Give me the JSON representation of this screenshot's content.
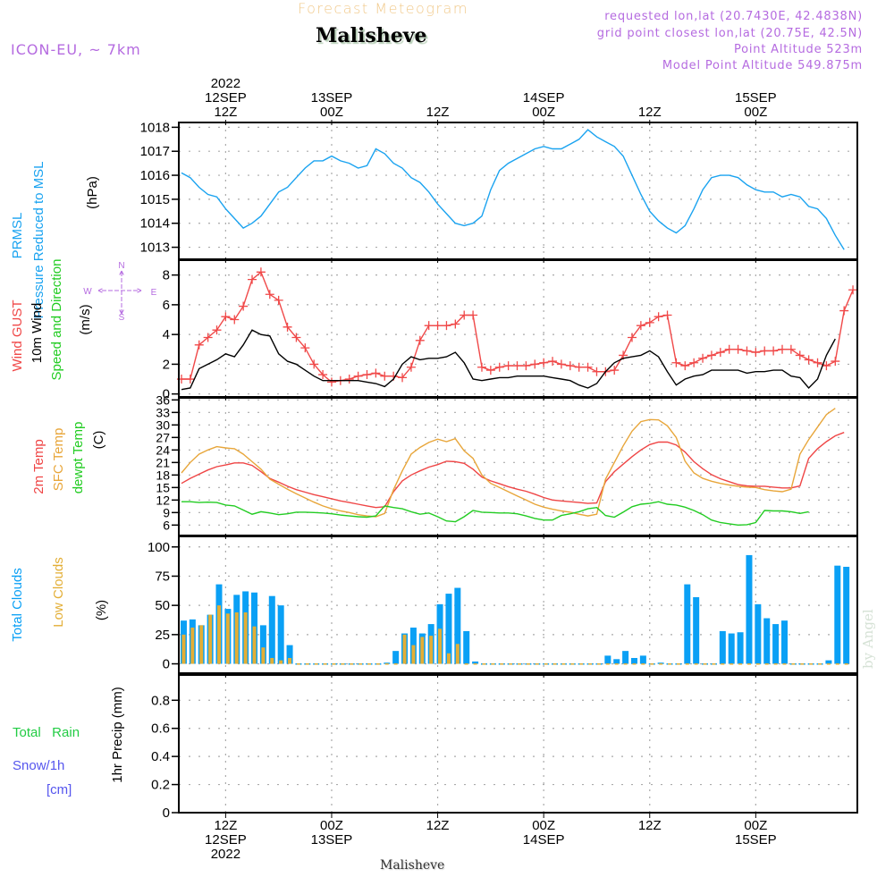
{
  "header": {
    "title": "Forecast Meteogram",
    "station": "Malisheve",
    "model": "ICON-EU, ~ 7km",
    "meta": [
      "requested lon,lat (20.7430E, 42.4838N)",
      "grid point closest lon,lat (20.75E, 42.5N)",
      "Point Altitude 523m",
      "Model Point Altitude 549.875m"
    ]
  },
  "footer": {
    "station": "Malisheve",
    "watermark": "by Angel"
  },
  "colors": {
    "pressure": "#1aa3f0",
    "gust": "#f04848",
    "wind": "#000000",
    "t2m": "#ef4545",
    "sfc": "#e8a63a",
    "dewpt": "#22cc22",
    "total_clouds": "#0aa0f5",
    "low_clouds": "#e3ae35",
    "rain": "#22cc44",
    "snow": "#5555ee",
    "compass": "#b56be0"
  },
  "chart_data": {
    "type": "line",
    "title": "Forecast Meteogram",
    "time_axis": {
      "unit": "hours since 12SEP 2022 07Z",
      "top_ticks": [
        {
          "hour": 5,
          "lines": [
            "2022",
            "12SEP",
            "12Z"
          ]
        },
        {
          "hour": 17,
          "lines": [
            "13SEP",
            "00Z"
          ]
        },
        {
          "hour": 29,
          "lines": [
            "12Z"
          ]
        },
        {
          "hour": 41,
          "lines": [
            "14SEP",
            "00Z"
          ]
        },
        {
          "hour": 53,
          "lines": [
            "12Z"
          ]
        },
        {
          "hour": 65,
          "lines": [
            "15SEP",
            "00Z"
          ]
        }
      ],
      "bottom_ticks": [
        {
          "hour": 5,
          "lines": [
            "12Z",
            "12SEP",
            "2022"
          ]
        },
        {
          "hour": 17,
          "lines": [
            "00Z",
            "13SEP"
          ]
        },
        {
          "hour": 29,
          "lines": [
            "12Z"
          ]
        },
        {
          "hour": 41,
          "lines": [
            "00Z",
            "14SEP"
          ]
        },
        {
          "hour": 53,
          "lines": [
            "12Z"
          ]
        },
        {
          "hour": 65,
          "lines": [
            "00Z",
            "15SEP"
          ]
        }
      ],
      "range": [
        -0.3,
        76.5
      ]
    },
    "panels": [
      {
        "id": "pressure",
        "type": "line",
        "ylabel": [
          "PRMSL",
          "Pressure Reduced to MSL"
        ],
        "unit": "(hPa)",
        "ylim": [
          1012.5,
          1018.2
        ],
        "yticks": [
          1013,
          1014,
          1015,
          1016,
          1017,
          1018
        ],
        "series": [
          {
            "name": "PRMSL",
            "color_key": "pressure",
            "values": [
              1016.1,
              1015.9,
              1015.5,
              1015.2,
              1015.1,
              1014.6,
              1014.2,
              1013.8,
              1014.0,
              1014.3,
              1014.8,
              1015.3,
              1015.5,
              1015.9,
              1016.3,
              1016.6,
              1016.6,
              1016.8,
              1016.6,
              1016.5,
              1016.3,
              1016.4,
              1017.1,
              1016.9,
              1016.5,
              1016.3,
              1015.9,
              1015.7,
              1015.3,
              1014.8,
              1014.4,
              1014.0,
              1013.9,
              1014.0,
              1014.3,
              1015.4,
              1016.2,
              1016.5,
              1016.7,
              1016.9,
              1017.1,
              1017.2,
              1017.1,
              1017.1,
              1017.3,
              1017.5,
              1017.9,
              1017.6,
              1017.4,
              1017.2,
              1016.8,
              1016.0,
              1015.2,
              1014.5,
              1014.1,
              1013.8,
              1013.6,
              1013.9,
              1014.6,
              1015.4,
              1015.9,
              1016.0,
              1016.0,
              1015.9,
              1015.6,
              1015.4,
              1015.3,
              1015.3,
              1015.1,
              1015.2,
              1015.1,
              1014.7,
              1014.6,
              1014.2,
              1013.5,
              1012.9
            ]
          }
        ]
      },
      {
        "id": "wind",
        "type": "line",
        "ylabel": [
          "Wind GUST",
          "10m Wind",
          "Speed and Direction"
        ],
        "unit": "(m/s)",
        "ylim": [
          -0.2,
          9.0
        ],
        "yticks": [
          0,
          2,
          4,
          6,
          8
        ],
        "compass": {
          "n": "N",
          "s": "S",
          "w": "W",
          "e": "E"
        },
        "arrow_row_value": 4.3,
        "series": [
          {
            "name": "Wind GUST",
            "color_key": "gust",
            "marker": "+",
            "values": [
              1.0,
              1.0,
              3.3,
              3.8,
              4.3,
              5.2,
              5.0,
              5.9,
              7.7,
              8.2,
              6.7,
              6.3,
              4.5,
              3.8,
              3.1,
              2.0,
              1.3,
              0.8,
              0.9,
              1.0,
              1.2,
              1.3,
              1.4,
              1.2,
              1.2,
              1.1,
              1.8,
              3.6,
              4.6,
              4.6,
              4.6,
              4.7,
              5.3,
              5.3,
              1.8,
              1.6,
              1.8,
              1.9,
              1.9,
              1.9,
              2.0,
              2.1,
              2.2,
              2.0,
              1.9,
              1.8,
              1.8,
              1.5,
              1.5,
              1.6,
              2.6,
              3.8,
              4.6,
              4.8,
              5.2,
              5.3,
              2.1,
              1.9,
              2.1,
              2.4,
              2.6,
              2.8,
              3.0,
              3.0,
              2.9,
              2.8,
              2.9,
              2.9,
              3.0,
              3.0,
              2.6,
              2.3,
              2.1,
              1.9,
              2.2,
              5.6,
              7.0
            ]
          },
          {
            "name": "10m Wind",
            "color_key": "wind",
            "values": [
              0.3,
              0.4,
              1.7,
              2.0,
              2.3,
              2.7,
              2.5,
              3.3,
              4.3,
              4.0,
              3.9,
              2.7,
              2.2,
              2.0,
              1.6,
              1.2,
              0.9,
              0.9,
              0.9,
              0.9,
              0.9,
              0.8,
              0.7,
              0.5,
              1.0,
              2.0,
              2.5,
              2.3,
              2.4,
              2.4,
              2.5,
              2.8,
              2.1,
              1.0,
              0.9,
              1.0,
              1.1,
              1.1,
              1.2,
              1.2,
              1.2,
              1.2,
              1.1,
              1.0,
              0.9,
              0.6,
              0.4,
              0.7,
              1.5,
              2.1,
              2.4,
              2.5,
              2.6,
              2.9,
              2.5,
              1.5,
              0.6,
              1.0,
              1.2,
              1.3,
              1.6,
              1.6,
              1.6,
              1.6,
              1.4,
              1.5,
              1.5,
              1.6,
              1.6,
              1.2,
              1.1,
              0.4,
              1.0,
              2.6,
              3.7
            ]
          },
          {
            "name": "Direction arrows (degrees from which wind blows)",
            "directions": [
              90,
              0,
              0,
              0,
              0,
              0,
              0,
              0,
              30,
              40,
              45,
              70,
              80,
              85,
              80,
              85,
              85,
              90,
              90,
              85,
              90,
              90,
              100,
              60,
              0,
              0,
              0,
              0,
              0,
              0,
              0,
              10,
              90,
              95,
              90,
              85,
              100,
              95,
              100,
              105,
              100,
              110,
              110,
              100,
              95,
              90,
              85,
              100,
              200,
              220,
              215,
              210,
              210,
              215,
              215,
              215,
              180,
              140,
              130,
              120,
              120,
              110,
              110,
              100,
              100,
              100,
              100,
              90,
              90,
              90,
              170,
              180,
              160,
              230,
              240
            ]
          }
        ]
      },
      {
        "id": "temperature",
        "type": "line",
        "ylabel": [
          "2m Temp",
          "SFC Temp",
          "dewpt Temp"
        ],
        "unit": "(C)",
        "ylim": [
          3.5,
          36.5
        ],
        "yticks": [
          6,
          9,
          12,
          15,
          18,
          21,
          24,
          27,
          30,
          33,
          36
        ],
        "series": [
          {
            "name": "2m Temp",
            "color_key": "t2m",
            "values": [
              16.0,
              17.2,
              18.2,
              19.2,
              20.0,
              20.4,
              20.9,
              20.9,
              20.3,
              18.8,
              17.2,
              16.3,
              15.3,
              14.5,
              13.9,
              13.3,
              12.8,
              12.3,
              11.8,
              11.4,
              11.0,
              10.6,
              10.2,
              10.4,
              14.0,
              16.6,
              18.0,
              19.0,
              19.9,
              20.5,
              21.3,
              21.2,
              20.8,
              19.4,
              17.5,
              16.6,
              15.9,
              15.2,
              14.6,
              14.1,
              13.4,
              12.6,
              12.0,
              11.8,
              11.6,
              11.4,
              11.2,
              11.3,
              16.4,
              18.8,
              20.6,
              22.4,
              24.0,
              25.3,
              25.9,
              25.9,
              25.2,
              23.5,
              21.2,
              19.5,
              18.1,
              17.1,
              16.4,
              15.7,
              15.4,
              15.3,
              15.3,
              15.1,
              14.9,
              14.9,
              15.4,
              22.0,
              24.3,
              26.0,
              27.4,
              28.2
            ]
          },
          {
            "name": "SFC Temp",
            "color_key": "sfc",
            "values": [
              18.5,
              21.0,
              23.0,
              24.0,
              24.8,
              24.5,
              24.3,
              23.0,
              21.2,
              19.4,
              17.0,
              15.8,
              14.6,
              13.5,
              12.5,
              11.5,
              10.6,
              9.9,
              9.4,
              9.0,
              8.5,
              8.2,
              8.0,
              8.8,
              14.5,
              19.0,
              23.0,
              24.6,
              25.8,
              26.6,
              26.0,
              26.7,
              23.8,
              22.0,
              18.0,
              16.0,
              15.0,
              14.0,
              13.0,
              12.0,
              11.0,
              10.3,
              9.8,
              9.4,
              9.1,
              8.6,
              8.2,
              8.6,
              17.0,
              21.0,
              25.0,
              28.5,
              30.8,
              31.3,
              31.2,
              29.8,
              27.0,
              21.3,
              18.5,
              17.2,
              16.5,
              16.0,
              15.6,
              15.3,
              15.1,
              15.0,
              14.5,
              14.2,
              14.0,
              14.6,
              23.0,
              26.5,
              29.5,
              32.5,
              34.0
            ]
          },
          {
            "name": "dewpt Temp",
            "color_key": "dewpt",
            "values": [
              11.6,
              11.6,
              11.4,
              11.5,
              11.4,
              10.8,
              10.6,
              9.6,
              8.6,
              9.2,
              8.9,
              8.5,
              8.7,
              9.1,
              9.1,
              9.0,
              8.9,
              8.7,
              8.4,
              8.2,
              8.0,
              7.9,
              8.2,
              10.6,
              10.2,
              9.9,
              9.2,
              8.6,
              8.9,
              8.0,
              7.0,
              6.8,
              8.0,
              9.5,
              9.1,
              9.0,
              8.9,
              8.9,
              8.7,
              8.2,
              7.6,
              7.2,
              7.2,
              8.3,
              8.7,
              9.2,
              9.9,
              10.2,
              8.3,
              7.9,
              9.1,
              10.4,
              11.0,
              11.2,
              11.6,
              11.0,
              10.8,
              10.3,
              9.5,
              8.5,
              7.2,
              6.6,
              6.3,
              6.0,
              6.1,
              6.6,
              9.5,
              9.4,
              9.4,
              9.2,
              8.8,
              9.2
            ]
          }
        ]
      },
      {
        "id": "clouds",
        "type": "bar",
        "ylabel": [
          "Total Clouds",
          "Low Clouds"
        ],
        "unit": "(%)",
        "ylim": [
          -8,
          109
        ],
        "yticks": [
          0,
          25,
          50,
          75,
          100
        ],
        "series": [
          {
            "name": "Total Clouds",
            "color_key": "total_clouds",
            "values": [
              37,
              38,
              33,
              42,
              68,
              47,
              59,
              62,
              61,
              33,
              58,
              50,
              16,
              0,
              0,
              0,
              0,
              0,
              0,
              0,
              0,
              0,
              0,
              1,
              11,
              26,
              31,
              26,
              34,
              51,
              60,
              65,
              28,
              2,
              0,
              0,
              0,
              0,
              0,
              0,
              0,
              0,
              0,
              0,
              0,
              0,
              0,
              0,
              7,
              4,
              11,
              5,
              7,
              0,
              1,
              0,
              0,
              68,
              57,
              0,
              0,
              28,
              26,
              27,
              93,
              51,
              39,
              34,
              37,
              0,
              0,
              0,
              0,
              3,
              84,
              83
            ]
          },
          {
            "name": "Low Clouds",
            "color_key": "low_clouds",
            "values": [
              25,
              31,
              33,
              42,
              50,
              43,
              44,
              44,
              32,
              14,
              5,
              3,
              5,
              0,
              0,
              0,
              0,
              0,
              0,
              0,
              0,
              0,
              0,
              0,
              0,
              25,
              16,
              23,
              24,
              30,
              9,
              17,
              0,
              0,
              0,
              0,
              0,
              0,
              0,
              0,
              0,
              0,
              0,
              0,
              0,
              0,
              0,
              0,
              0,
              0,
              0,
              0,
              0,
              0,
              0,
              0,
              0,
              0,
              0,
              0,
              0,
              0,
              0,
              0,
              0,
              0,
              0,
              0,
              0,
              0,
              0,
              0,
              0,
              0,
              0,
              0
            ]
          }
        ]
      },
      {
        "id": "precip",
        "type": "bar",
        "ylabel": [
          "1hr Precip (mm)"
        ],
        "side_labels": [
          "Total   Rain",
          "Snow/1h",
          "[cm]"
        ],
        "ylim": [
          0,
          0.98
        ],
        "yticks": [
          0,
          0.2,
          0.4,
          0.6,
          0.8
        ],
        "ytick_labels": [
          "0",
          "0.2",
          "0.4",
          "0.6",
          "0.8"
        ],
        "series": [
          {
            "name": "Total Rain",
            "color_key": "rain",
            "values": []
          },
          {
            "name": "Snow/1h",
            "color_key": "snow",
            "values": []
          }
        ]
      }
    ]
  }
}
